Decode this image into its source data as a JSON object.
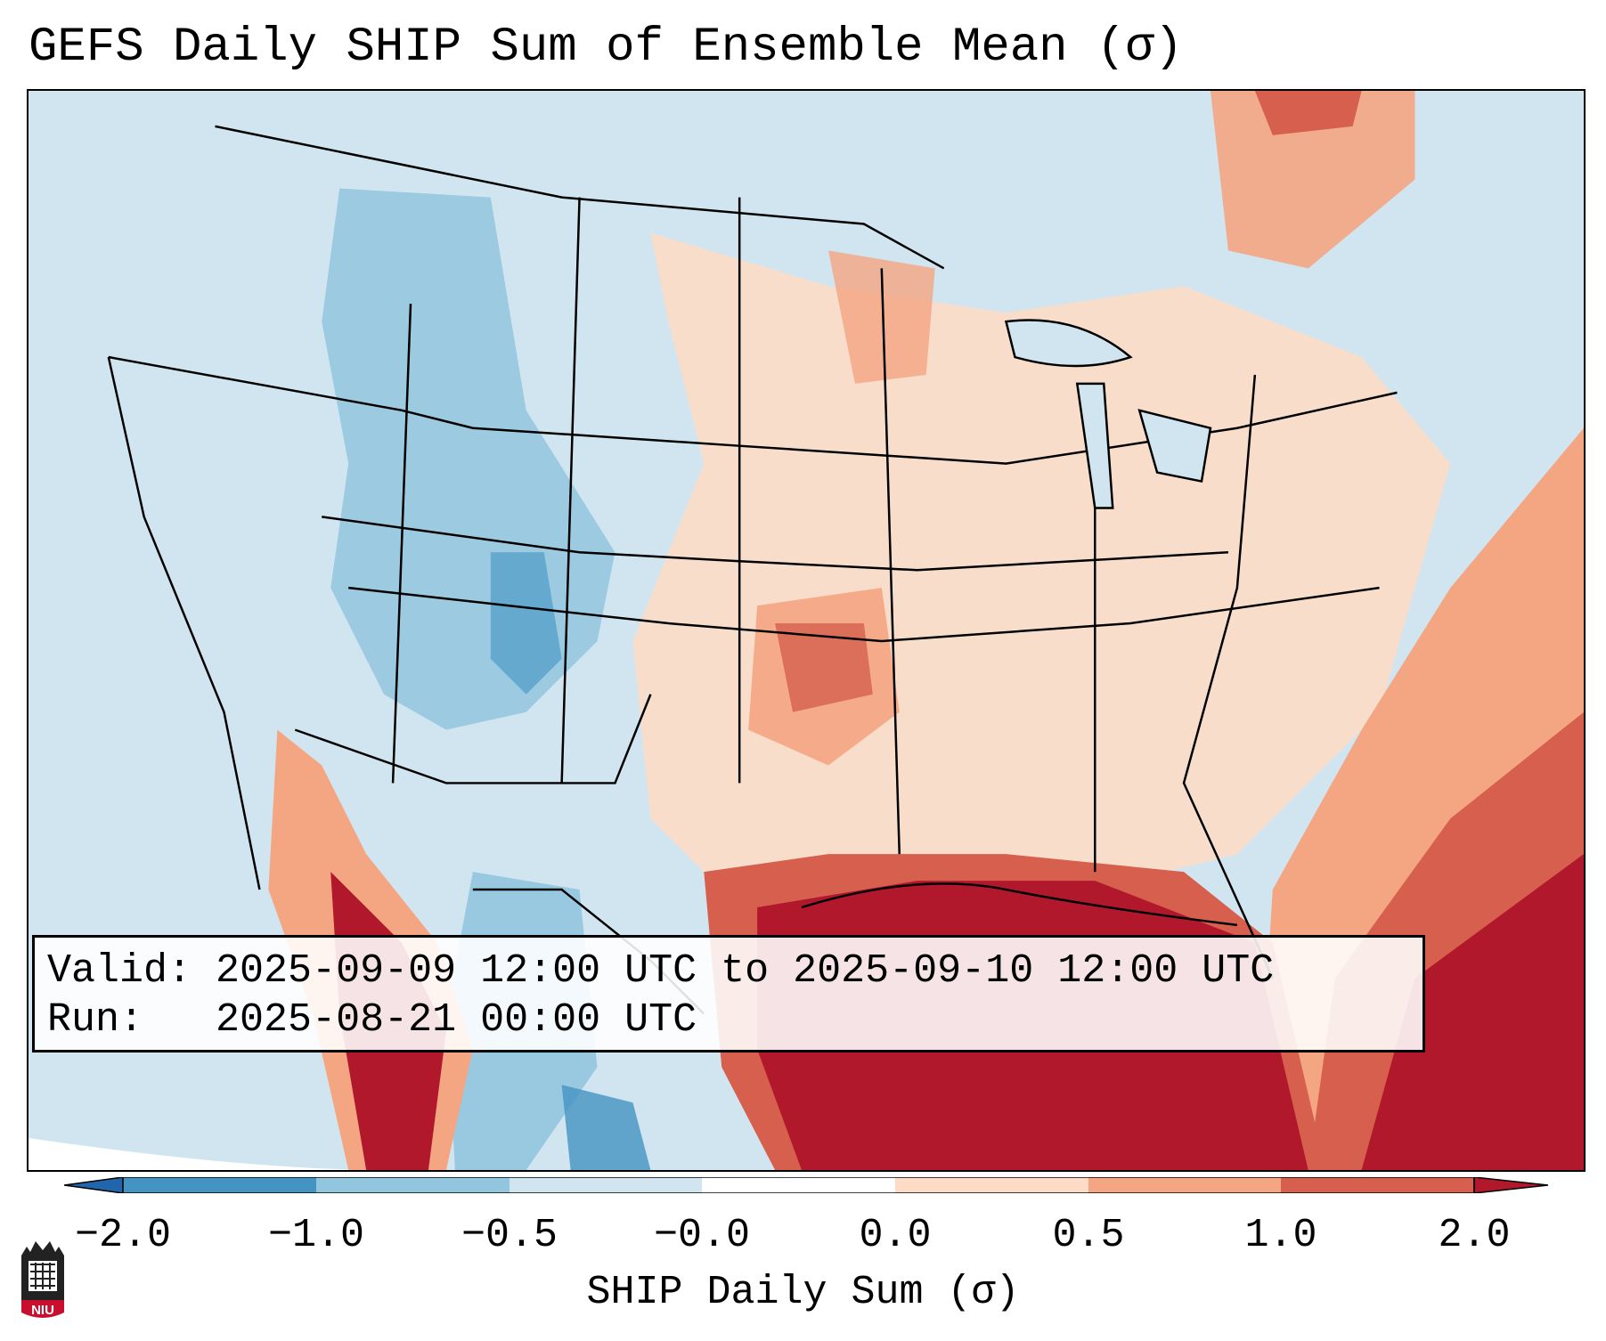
{
  "title": "GEFS Daily SHIP Sum of Ensemble Mean (σ)",
  "info_box": {
    "valid_label": "Valid:",
    "valid_value": "2025-09-09 12:00 UTC to 2025-09-10 12:00 UTC",
    "run_label": "Run:",
    "run_value": "2025-08-21 00:00 UTC"
  },
  "colorbar": {
    "label": "SHIP Daily Sum (σ)",
    "tick_labels": [
      "−2.0",
      "−1.0",
      "−0.5",
      "−0.0",
      "0.0",
      "0.5",
      "1.0",
      "2.0"
    ],
    "colors": [
      "#2166ac",
      "#4393c3",
      "#92c5de",
      "#d1e5f0",
      "#ffffff",
      "#fddbc7",
      "#f4a582",
      "#d6604d",
      "#b2182b"
    ]
  },
  "logo": {
    "text": "NIU",
    "brand_color": "#c8102e"
  }
}
